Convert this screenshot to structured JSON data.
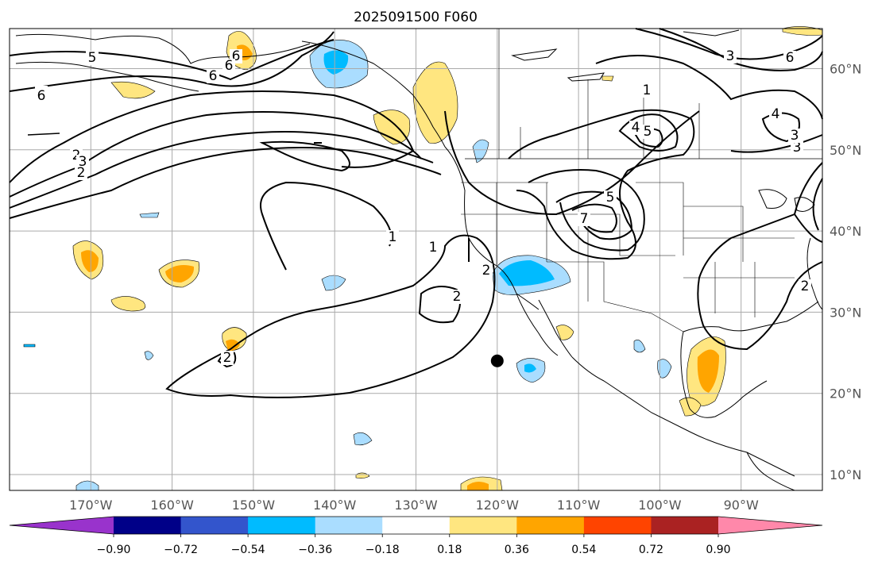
{
  "title": "2025091500 F060",
  "lon_labels": [
    "170°W",
    "160°W",
    "150°W",
    "140°W",
    "130°W",
    "120°W",
    "110°W",
    "100°W",
    "90°W"
  ],
  "lat_labels": [
    "60°N",
    "50°N",
    "40°N",
    "30°N",
    "20°N",
    "10°N"
  ],
  "colorbar": {
    "colors": [
      "#9933cc",
      "#000088",
      "#3355cc",
      "#00bbff",
      "#aaddff",
      "#ffffff",
      "#ffe680",
      "#ffa500",
      "#ff4400",
      "#aa2222",
      "#ff88aa"
    ],
    "tick_labels": [
      "−0.90",
      "−0.72",
      "−0.54",
      "−0.36",
      "−0.18",
      "0.18",
      "0.36",
      "0.54",
      "0.72",
      "0.90"
    ]
  },
  "contour_labels": [
    "5",
    "6",
    "6",
    "6",
    "2",
    "3",
    "2",
    "1",
    "1",
    "2",
    "2",
    "5",
    "5",
    "4",
    "1",
    "3",
    "7",
    "3",
    "6",
    "4",
    "3",
    "2",
    "2"
  ],
  "marker": {
    "lon": -120,
    "lat": 24,
    "color": "#000000"
  }
}
